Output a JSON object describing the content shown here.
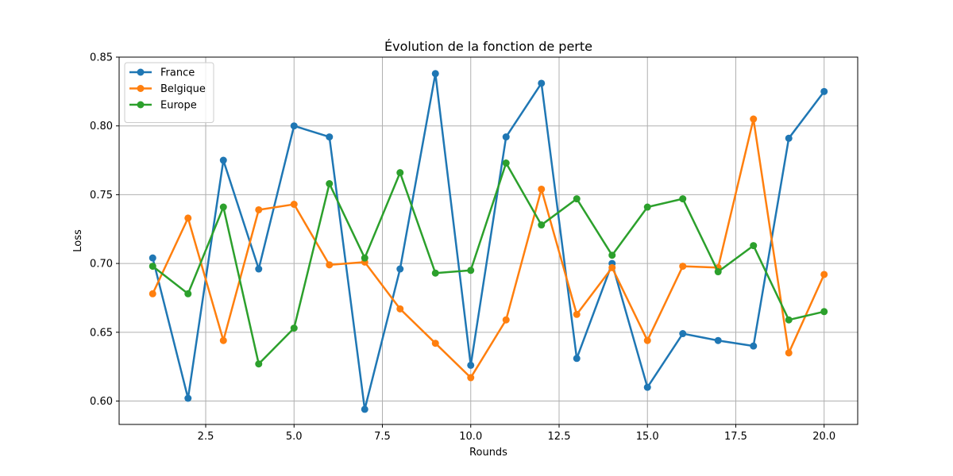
{
  "chart_data": {
    "type": "line",
    "title": "Évolution de la fonction de perte",
    "xlabel": "Rounds",
    "ylabel": "Loss",
    "xlim": [
      0.05,
      20.95
    ],
    "ylim": [
      0.583,
      0.85
    ],
    "x_ticks": [
      2.5,
      5.0,
      7.5,
      10.0,
      12.5,
      15.0,
      17.5,
      20.0
    ],
    "x_tick_labels": [
      "2.5",
      "5.0",
      "7.5",
      "10.0",
      "12.5",
      "15.0",
      "17.5",
      "20.0"
    ],
    "y_ticks": [
      0.6,
      0.65,
      0.7,
      0.75,
      0.8,
      0.85
    ],
    "y_tick_labels": [
      "0.60",
      "0.65",
      "0.70",
      "0.75",
      "0.80",
      "0.85"
    ],
    "grid": true,
    "legend_position": "top-left",
    "x": [
      1,
      2,
      3,
      4,
      5,
      6,
      7,
      8,
      9,
      10,
      11,
      12,
      13,
      14,
      15,
      16,
      17,
      18,
      19,
      20
    ],
    "series": [
      {
        "name": "France",
        "color": "#1f77b4",
        "values": [
          0.704,
          0.602,
          0.775,
          0.696,
          0.8,
          0.792,
          0.594,
          0.696,
          0.838,
          0.626,
          0.792,
          0.831,
          0.631,
          0.7,
          0.61,
          0.649,
          0.644,
          0.64,
          0.791,
          0.825
        ]
      },
      {
        "name": "Belgique",
        "color": "#ff7f0e",
        "values": [
          0.678,
          0.733,
          0.644,
          0.739,
          0.743,
          0.699,
          0.701,
          0.667,
          0.642,
          0.617,
          0.659,
          0.754,
          0.663,
          0.697,
          0.644,
          0.698,
          0.697,
          0.805,
          0.635,
          0.692
        ]
      },
      {
        "name": "Europe",
        "color": "#2ca02c",
        "values": [
          0.698,
          0.678,
          0.741,
          0.627,
          0.653,
          0.758,
          0.704,
          0.766,
          0.693,
          0.695,
          0.773,
          0.728,
          0.747,
          0.706,
          0.741,
          0.747,
          0.694,
          0.713,
          0.659,
          0.665
        ]
      }
    ]
  }
}
